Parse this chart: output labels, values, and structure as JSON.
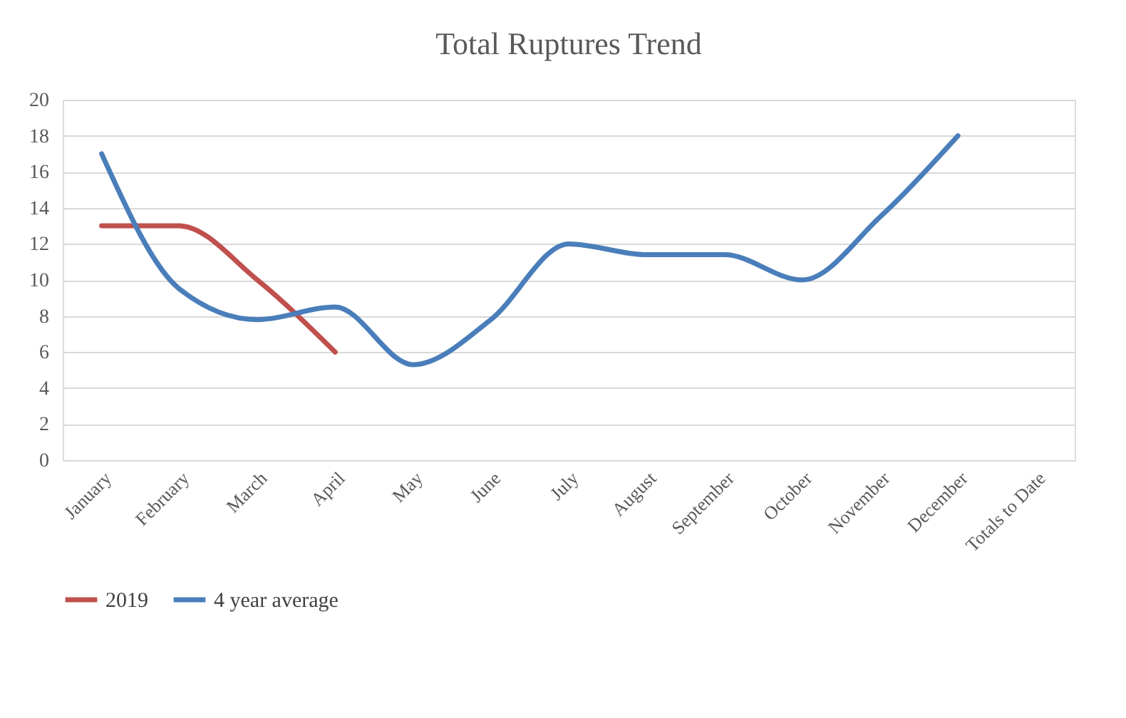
{
  "chart_data": {
    "type": "line",
    "title": "Total Ruptures Trend",
    "categories": [
      "January",
      "February",
      "March",
      "April",
      "May",
      "June",
      "July",
      "August",
      "September",
      "October",
      "November",
      "December",
      "Totals to Date"
    ],
    "series": [
      {
        "name": "2019",
        "color": "#c0504d",
        "values": [
          13,
          13,
          10,
          6,
          null,
          null,
          null,
          null,
          null,
          null,
          null,
          null,
          null
        ]
      },
      {
        "name": "4 year average",
        "color": "#4a7ebb",
        "values": [
          17,
          9.5,
          7.8,
          8.5,
          5.3,
          7.8,
          12,
          11.4,
          11.4,
          10,
          13.5,
          18,
          null
        ]
      }
    ],
    "ylim": [
      0,
      20
    ],
    "yticks": [
      0,
      2,
      4,
      6,
      8,
      10,
      12,
      14,
      16,
      18,
      20
    ],
    "grid": "y",
    "legend": "bottom",
    "marker": "none",
    "line_style": "solid"
  }
}
